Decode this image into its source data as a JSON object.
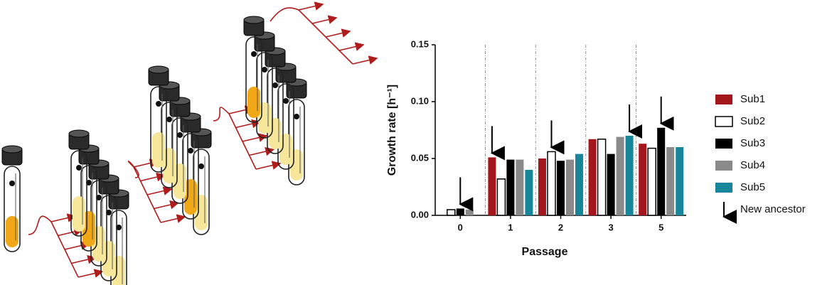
{
  "chart_data": {
    "type": "bar",
    "x_label": "Passage",
    "y_label": "Growth rate [h⁻¹]",
    "categories": [
      "0",
      "1",
      "2",
      "3",
      "5"
    ],
    "series": [
      {
        "name": "Sub1",
        "color": "#a3161c",
        "values": [
          null,
          0.051,
          0.05,
          0.067,
          0.063
        ]
      },
      {
        "name": "Sub2",
        "color": "#ffffff",
        "values": [
          0.005,
          0.032,
          0.056,
          0.067,
          0.059
        ]
      },
      {
        "name": "Sub3",
        "color": "#000000",
        "values": [
          0.006,
          0.049,
          0.048,
          0.054,
          0.077
        ]
      },
      {
        "name": "Sub4",
        "color": "#8a8a8a",
        "values": [
          0.005,
          0.049,
          0.049,
          0.069,
          0.06
        ]
      },
      {
        "name": "Sub5",
        "color": "#17869b",
        "values": [
          null,
          0.04,
          0.054,
          0.07,
          0.06
        ]
      }
    ],
    "ancestor_label": "New ancestor",
    "ancestors": [
      "Sub3",
      "Sub1",
      "Sub2",
      "Sub5",
      "Sub3"
    ],
    "ylim": [
      0,
      0.15
    ],
    "yticks": [
      {
        "value": 0,
        "label": "0.00"
      },
      {
        "value": 0.05,
        "label": "0.05"
      },
      {
        "value": 0.1,
        "label": "0.10"
      },
      {
        "value": 0.15,
        "label": "0.15"
      }
    ],
    "group_separators": true
  }
}
